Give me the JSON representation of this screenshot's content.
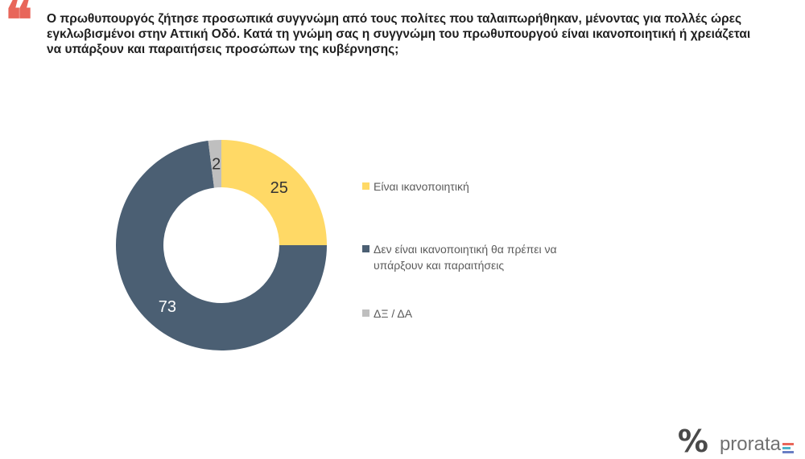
{
  "question": {
    "text": "Ο πρωθυπουργός ζήτησε προσωπικά συγγνώμη από τους πολίτες που ταλαιπωρήθηκαν, μένοντας για πολλές ώρες εγκλωβισμένοι στην Αττική Οδό. Κατά τη γνώμη σας η συγγνώμη του πρωθυπουργού είναι ικανοποιητική ή χρειάζεται να υπάρξουν και παραιτήσεις προσώπων της κυβέρνησης;",
    "quote_color": "#e8665a",
    "quote_icon": "quotation-mark-icon"
  },
  "chart_data": {
    "type": "pie",
    "donut": true,
    "title": "",
    "slices": [
      {
        "label": "Είναι ικανοποιητική",
        "value": 25,
        "color": "#ffd966",
        "label_color": "#333333"
      },
      {
        "label": "Δεν είναι ικανοποιητική θα πρέπει να υπάρξουν και παραιτήσεις",
        "value": 73,
        "color": "#4b5f73",
        "label_color": "#ffffff"
      },
      {
        "label": "ΔΞ / ΔΑ",
        "value": 2,
        "color": "#bfbfbf",
        "label_color": "#333333"
      }
    ],
    "legend_position": "right"
  },
  "brand": {
    "mark": "%",
    "name": "prorata",
    "bar_colors": [
      "#e8665a",
      "#4fb3c8",
      "#6a7fc4"
    ]
  }
}
